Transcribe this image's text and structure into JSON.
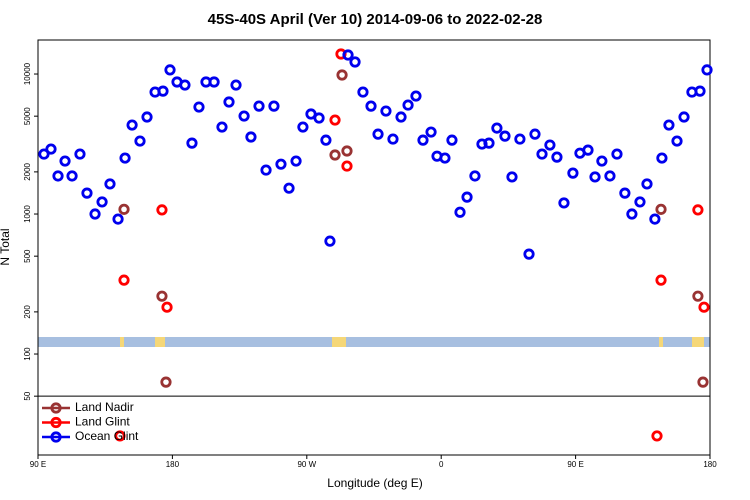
{
  "chart_data": {
    "type": "scatter",
    "log_y": true,
    "title": "45S-40S April (Ver 10)   2014-09-06 to 2022-02-28",
    "x_label": "Longitude (deg E)",
    "y_label": "N Total",
    "xlim": [
      90,
      540
    ],
    "ylim": [
      19,
      17500
    ],
    "xticks": [
      {
        "value": 90,
        "label": "90 E"
      },
      {
        "value": 180,
        "label": "180"
      },
      {
        "value": 270,
        "label": "90 W"
      },
      {
        "value": 360,
        "label": "0"
      },
      {
        "value": 450,
        "label": "90 E"
      },
      {
        "value": 540,
        "label": "180"
      }
    ],
    "yticks": [
      50,
      100,
      200,
      500,
      1000,
      2000,
      5000,
      10000
    ],
    "legend": "bottom-left",
    "series": [
      {
        "name": "Land Nadir",
        "color": "#993333",
        "x": [
          147.6,
          173,
          175.7,
          288.9,
          293.6,
          296.9,
          507.2,
          531.9,
          535.3
        ],
        "values": [
          1080,
          259,
          63,
          2640,
          9840,
          2820,
          1080,
          259,
          63
        ]
      },
      {
        "name": "Land Glint",
        "color": "#ff0000",
        "x": [
          147.6,
          173,
          176.4,
          288.9,
          292.9,
          296.9,
          144.9,
          507.2,
          531.9,
          536,
          504.5
        ],
        "values": [
          337,
          1070,
          216,
          4690,
          13900,
          2200,
          26,
          337,
          1070,
          216,
          26
        ]
      },
      {
        "name": "Ocean Glint",
        "color": "#0000ee",
        "x": [
          94.0,
          98.7,
          103.4,
          108.1,
          112.8,
          118.1,
          122.8,
          128.2,
          132.9,
          138.2,
          143.6,
          148.3,
          153,
          158.3,
          163,
          168.4,
          173.7,
          178.4,
          183.1,
          188.4,
          193.1,
          197.8,
          202.5,
          207.9,
          213.2,
          217.9,
          222.6,
          228,
          232.6,
          238,
          242.7,
          248,
          252.7,
          258.1,
          262.8,
          267.4,
          272.8,
          278.2,
          282.8,
          285.5,
          297.6,
          302.3,
          307.6,
          313,
          317.7,
          323,
          327.7,
          333.1,
          337.8,
          343.1,
          347.8,
          353.2,
          357.2,
          362.5,
          367.2,
          372.6,
          377.3,
          382.6,
          387.3,
          392,
          397.3,
          402.7,
          407.4,
          412.7,
          418.8,
          422.8,
          427.5,
          432.8,
          437.5,
          442.2,
          448.2,
          452.9,
          458.3,
          463,
          467.6,
          473,
          477.7,
          483,
          487.7,
          493.1,
          497.8,
          503.1,
          507.8,
          512.5,
          517.9,
          522.6,
          527.9,
          533.3,
          538
        ],
        "values": [
          2680,
          2910,
          1870,
          2390,
          1870,
          2680,
          1410,
          1000,
          1220,
          1640,
          920,
          2510,
          4320,
          3320,
          4930,
          7430,
          7550,
          10700,
          8770,
          8340,
          3210,
          5810,
          8770,
          8770,
          4180,
          6310,
          8340,
          5010,
          3550,
          5900,
          2060,
          5900,
          2270,
          1530,
          2390,
          4180,
          5180,
          4850,
          3370,
          640,
          13670,
          12190,
          7430,
          5900,
          3720,
          5440,
          3430,
          4930,
          6000,
          6960,
          3370,
          3850,
          2590,
          2510,
          3370,
          1030,
          1320,
          1870,
          3160,
          3210,
          4110,
          3600,
          1840,
          3430,
          517,
          3720,
          2680,
          3110,
          2550,
          1200,
          1960,
          2720,
          2860,
          1840,
          2390,
          1870,
          2680,
          1410,
          1000,
          1220,
          1640,
          920,
          2510,
          4320,
          3320,
          4930,
          7430,
          7550,
          10700
        ]
      }
    ]
  }
}
